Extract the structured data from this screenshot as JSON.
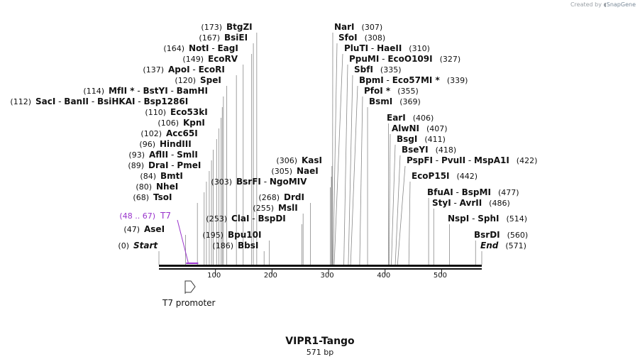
{
  "credit": {
    "prefix": "Created by",
    "brand": "SnapGene"
  },
  "plasmid": {
    "name": "VIPR1-Tango",
    "length_label": "571 bp",
    "length": 571
  },
  "ticks": [
    {
      "pos": 100,
      "label": "100"
    },
    {
      "pos": 200,
      "label": "200"
    },
    {
      "pos": 300,
      "label": "300"
    },
    {
      "pos": 400,
      "label": "400"
    },
    {
      "pos": 500,
      "label": "500"
    }
  ],
  "feature": {
    "name": "T7 promoter",
    "start": 48,
    "end": 67,
    "label_range": "(48 .. 67)",
    "label_name": "T7",
    "color": "#9933cc"
  },
  "sites": [
    {
      "pos": 0,
      "pos_label": "(0)",
      "names": [
        "Start"
      ],
      "italic": true
    },
    {
      "pos": 47,
      "pos_label": "(47)",
      "names": [
        "AseI"
      ]
    },
    {
      "pos": 68,
      "pos_label": "(68)",
      "names": [
        "TsoI"
      ]
    },
    {
      "pos": 80,
      "pos_label": "(80)",
      "names": [
        "NheI"
      ]
    },
    {
      "pos": 84,
      "pos_label": "(84)",
      "names": [
        "BmtI"
      ]
    },
    {
      "pos": 89,
      "pos_label": "(89)",
      "names": [
        "DraI",
        "PmeI"
      ]
    },
    {
      "pos": 93,
      "pos_label": "(93)",
      "names": [
        "AflII",
        "SmlI"
      ]
    },
    {
      "pos": 96,
      "pos_label": "(96)",
      "names": [
        "HindIII"
      ]
    },
    {
      "pos": 102,
      "pos_label": "(102)",
      "names": [
        "Acc65I"
      ]
    },
    {
      "pos": 106,
      "pos_label": "(106)",
      "names": [
        "KpnI"
      ]
    },
    {
      "pos": 110,
      "pos_label": "(110)",
      "names": [
        "Eco53kI"
      ]
    },
    {
      "pos": 112,
      "pos_label": "(112)",
      "names": [
        "SacI",
        "BanII",
        "BsiHKAI",
        "Bsp1286I"
      ]
    },
    {
      "pos": 114,
      "pos_label": "(114)",
      "names": [
        "MfII *",
        "BstYI",
        "BamHI"
      ]
    },
    {
      "pos": 120,
      "pos_label": "(120)",
      "names": [
        "SpeI"
      ]
    },
    {
      "pos": 137,
      "pos_label": "(137)",
      "names": [
        "ApoI",
        "EcoRI"
      ]
    },
    {
      "pos": 149,
      "pos_label": "(149)",
      "names": [
        "EcoRV"
      ]
    },
    {
      "pos": 164,
      "pos_label": "(164)",
      "names": [
        "NotI",
        "EagI"
      ]
    },
    {
      "pos": 167,
      "pos_label": "(167)",
      "names": [
        "BsiEI"
      ]
    },
    {
      "pos": 173,
      "pos_label": "(173)",
      "names": [
        "BtgZI"
      ]
    },
    {
      "pos": 186,
      "pos_label": "(186)",
      "names": [
        "BbsI"
      ]
    },
    {
      "pos": 195,
      "pos_label": "(195)",
      "names": [
        "Bpu10I"
      ]
    },
    {
      "pos": 253,
      "pos_label": "(253)",
      "names": [
        "ClaI",
        "BspDI"
      ]
    },
    {
      "pos": 255,
      "pos_label": "(255)",
      "names": [
        "MslI"
      ]
    },
    {
      "pos": 268,
      "pos_label": "(268)",
      "names": [
        "DrdI"
      ]
    },
    {
      "pos": 303,
      "pos_label": "(303)",
      "names": [
        "BsrFI",
        "NgoMIV"
      ]
    },
    {
      "pos": 305,
      "pos_label": "(305)",
      "names": [
        "NaeI"
      ]
    },
    {
      "pos": 306,
      "pos_label": "(306)",
      "names": [
        "KasI"
      ]
    },
    {
      "pos": 307,
      "pos_label": "(307)",
      "names": [
        "NarI"
      ]
    },
    {
      "pos": 308,
      "pos_label": "(308)",
      "names": [
        "SfoI"
      ]
    },
    {
      "pos": 310,
      "pos_label": "(310)",
      "names": [
        "PluTI",
        "HaeII"
      ]
    },
    {
      "pos": 327,
      "pos_label": "(327)",
      "names": [
        "PpuMI",
        "EcoO109I"
      ]
    },
    {
      "pos": 335,
      "pos_label": "(335)",
      "names": [
        "SbfI"
      ]
    },
    {
      "pos": 339,
      "pos_label": "(339)",
      "names": [
        "BpmI",
        "Eco57MI *"
      ]
    },
    {
      "pos": 355,
      "pos_label": "(355)",
      "names": [
        "PfoI *"
      ]
    },
    {
      "pos": 369,
      "pos_label": "(369)",
      "names": [
        "BsmI"
      ]
    },
    {
      "pos": 406,
      "pos_label": "(406)",
      "names": [
        "EarI"
      ]
    },
    {
      "pos": 407,
      "pos_label": "(407)",
      "names": [
        "AlwNI"
      ]
    },
    {
      "pos": 411,
      "pos_label": "(411)",
      "names": [
        "BsgI"
      ]
    },
    {
      "pos": 418,
      "pos_label": "(418)",
      "names": [
        "BseYI"
      ]
    },
    {
      "pos": 422,
      "pos_label": "(422)",
      "names": [
        "PspFI",
        "PvuII",
        "MspA1I"
      ]
    },
    {
      "pos": 442,
      "pos_label": "(442)",
      "names": [
        "EcoP15I"
      ]
    },
    {
      "pos": 477,
      "pos_label": "(477)",
      "names": [
        "BfuAI",
        "BspMI"
      ]
    },
    {
      "pos": 486,
      "pos_label": "(486)",
      "names": [
        "StyI",
        "AvrII"
      ]
    },
    {
      "pos": 514,
      "pos_label": "(514)",
      "names": [
        "NspI",
        "SphI"
      ]
    },
    {
      "pos": 560,
      "pos_label": "(560)",
      "names": [
        "BsrDI"
      ]
    },
    {
      "pos": 571,
      "pos_label": "(571)",
      "names": [
        "End"
      ],
      "italic": true
    }
  ]
}
